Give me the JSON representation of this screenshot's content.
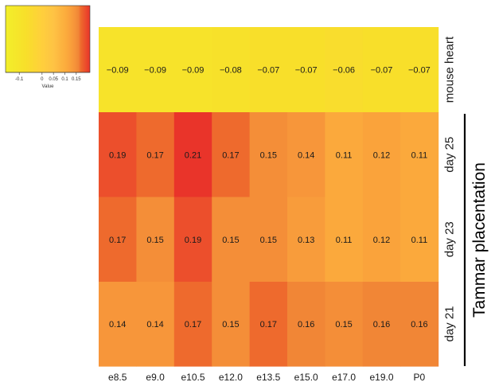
{
  "chart_data": {
    "type": "heatmap",
    "columns": [
      "e8.5",
      "e9.0",
      "e10.5",
      "e12.0",
      "e13.5",
      "e15.0",
      "e17.0",
      "e19.0",
      "P0"
    ],
    "rows": [
      "mouse heart",
      "day 25",
      "day 23",
      "day 21"
    ],
    "row_group_label": "Tammar placentation",
    "row_group_members": [
      "day 25",
      "day 23",
      "day 21"
    ],
    "values": [
      [
        -0.09,
        -0.09,
        -0.09,
        -0.08,
        -0.07,
        -0.07,
        -0.06,
        -0.07,
        -0.07
      ],
      [
        0.19,
        0.17,
        0.21,
        0.17,
        0.15,
        0.14,
        0.11,
        0.12,
        0.11
      ],
      [
        0.17,
        0.15,
        0.19,
        0.15,
        0.15,
        0.13,
        0.11,
        0.12,
        0.11
      ],
      [
        0.14,
        0.14,
        0.17,
        0.15,
        0.17,
        0.16,
        0.15,
        0.16,
        0.16
      ]
    ],
    "labels": [
      [
        "−0.09",
        "−0.09",
        "−0.09",
        "−0.08",
        "−0.07",
        "−0.07",
        "−0.06",
        "−0.07",
        "−0.07"
      ],
      [
        "0.19",
        "0.17",
        "0.21",
        "0.17",
        "0.15",
        "0.14",
        "0.11",
        "0.12",
        "0.11"
      ],
      [
        "0.17",
        "0.15",
        "0.19",
        "0.15",
        "0.15",
        "0.13",
        "0.11",
        "0.12",
        "0.11"
      ],
      [
        "0.14",
        "0.14",
        "0.17",
        "0.15",
        "0.17",
        "0.16",
        "0.15",
        "0.16",
        "0.16"
      ]
    ],
    "color_key": {
      "xlabel": "Value",
      "ticks": [
        -0.1,
        0,
        0.05,
        0.1,
        0.15
      ],
      "tick_labels": [
        "-0.1",
        "0",
        "0.05",
        "0.1",
        "0.15"
      ],
      "range": [
        -0.16,
        0.21
      ],
      "colors": [
        "#f2ef2a",
        "#f8df2a",
        "#ffcf3c",
        "#fec344",
        "#fba93c",
        "#f7963a",
        "#f18636",
        "#ee6a2d",
        "#e9342a"
      ],
      "color_stops": [
        -0.16,
        -0.07,
        0.0,
        0.05,
        0.11,
        0.14,
        0.16,
        0.17,
        0.21
      ]
    }
  }
}
